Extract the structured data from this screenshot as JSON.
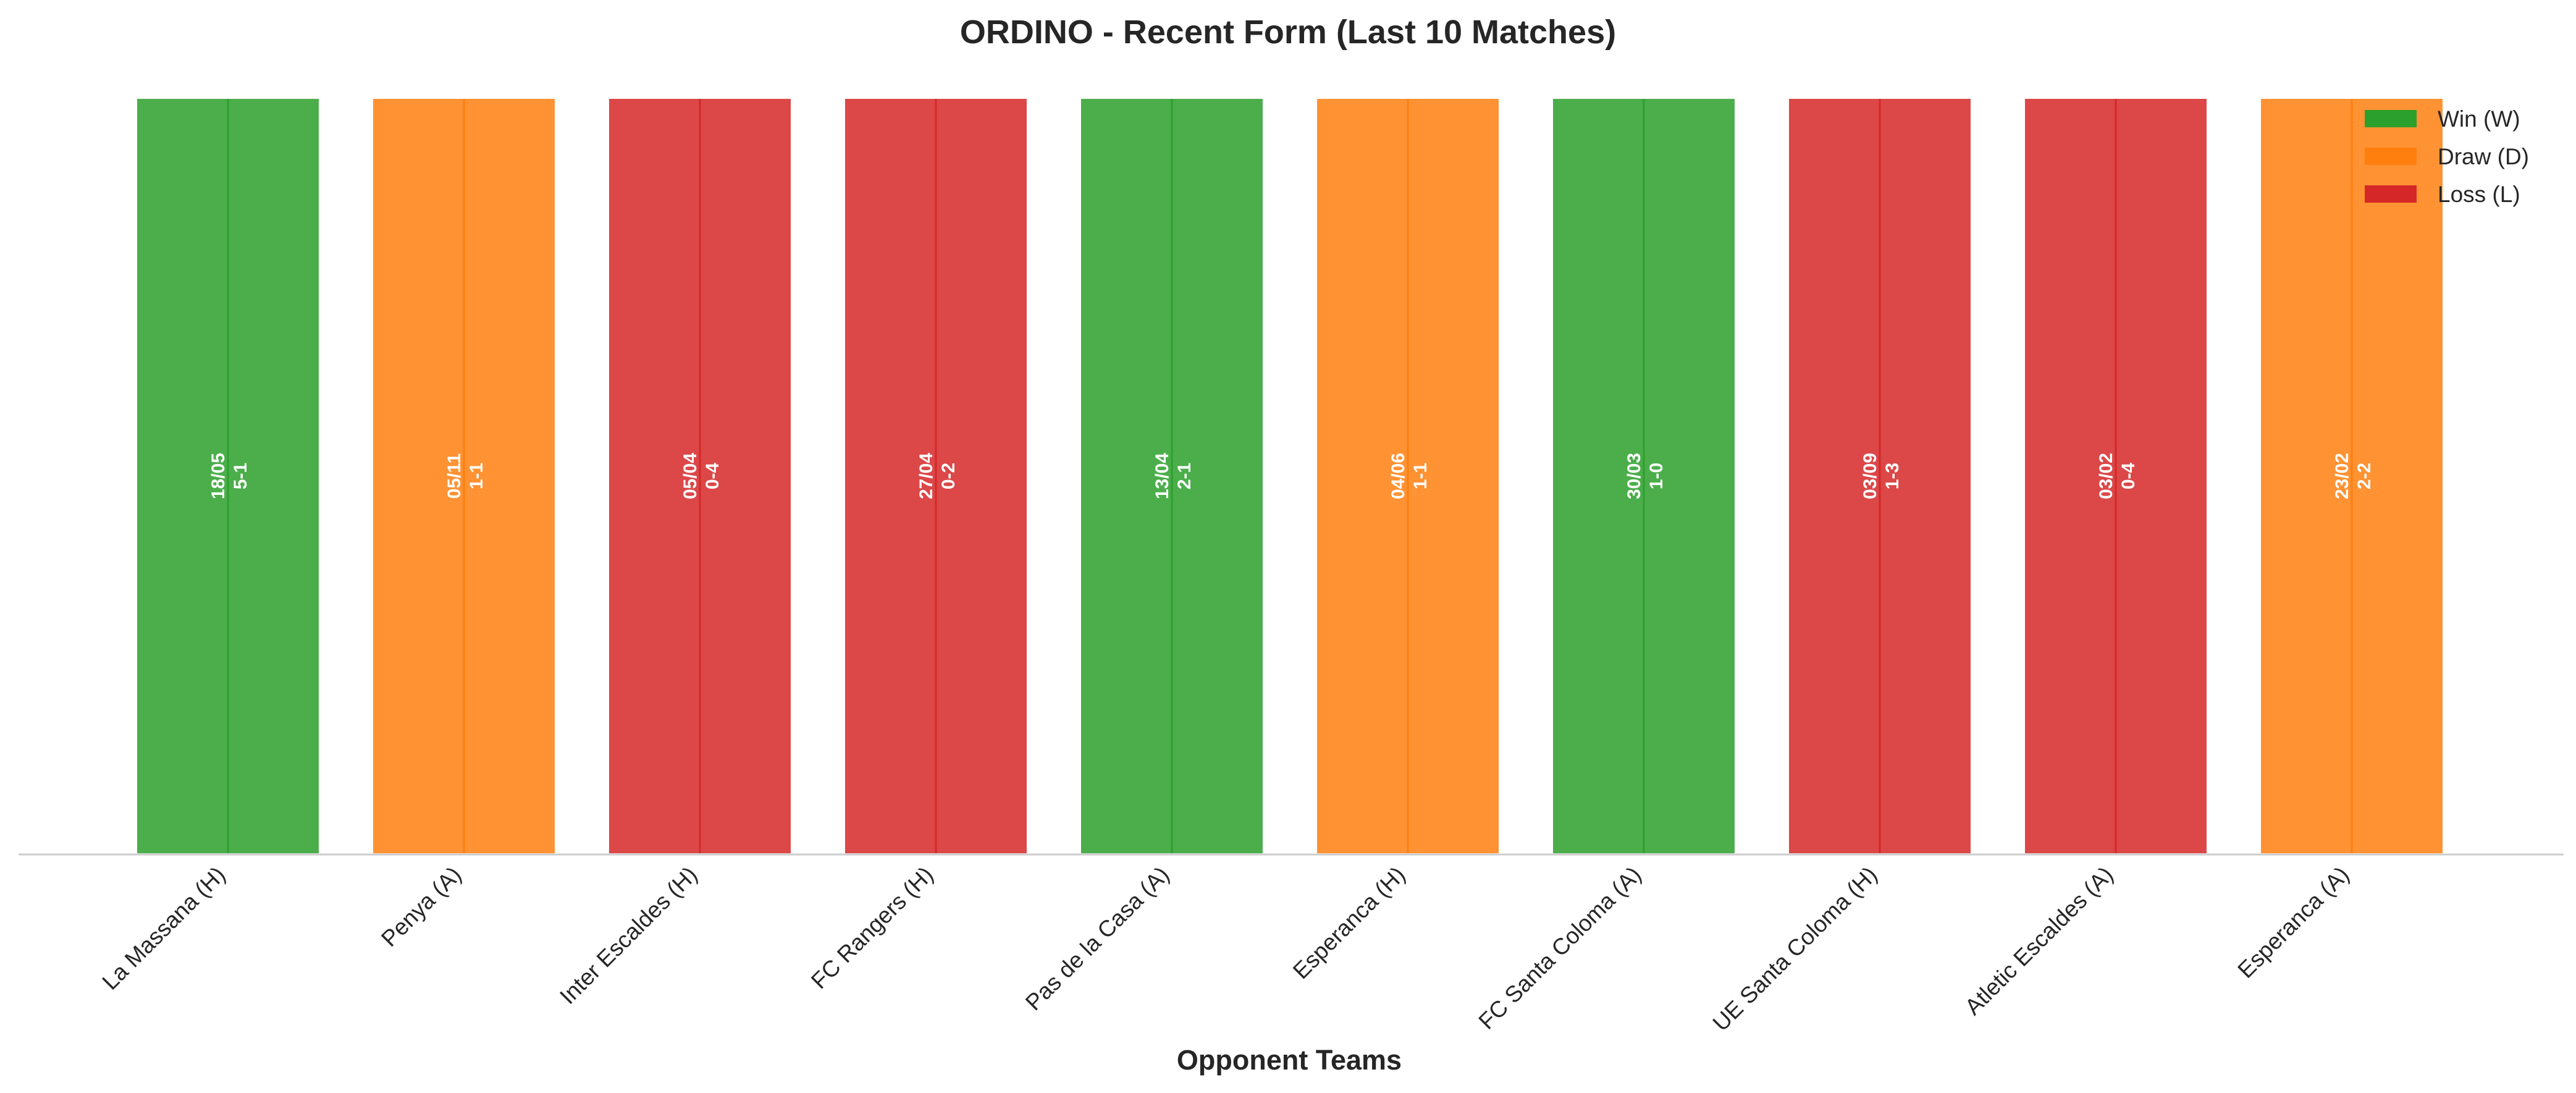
{
  "chart_data": {
    "type": "bar",
    "title": "ORDINO - Recent Form (Last 10 Matches)",
    "xlabel": "Opponent Teams",
    "ylabel": "",
    "ylim": [
      0,
      1
    ],
    "grid": false,
    "legend_position": "top-right",
    "categories": [
      "La Massana (H)",
      "Penya (A)",
      "Inter Escaldes (H)",
      "FC Rangers (H)",
      "Pas de la Casa (A)",
      "Esperanca (H)",
      "FC Santa Coloma (A)",
      "UE Santa Coloma (H)",
      "Atletic Escaldes (A)",
      "Esperanca (A)"
    ],
    "values": [
      1,
      1,
      1,
      1,
      1,
      1,
      1,
      1,
      1,
      1
    ],
    "results": [
      "W",
      "D",
      "L",
      "L",
      "W",
      "D",
      "W",
      "L",
      "L",
      "D"
    ],
    "dates": [
      "18/05",
      "05/11",
      "05/04",
      "27/04",
      "13/04",
      "04/06",
      "30/03",
      "03/09",
      "03/02",
      "23/02"
    ],
    "scores": [
      "5-1",
      "1-1",
      "0-4",
      "0-2",
      "2-1",
      "1-1",
      "1-0",
      "1-3",
      "0-4",
      "2-2"
    ],
    "legend": [
      {
        "key": "W",
        "label": "Win (W)",
        "color": "#2ca02c"
      },
      {
        "key": "D",
        "label": "Draw (D)",
        "color": "#ff7f0e"
      },
      {
        "key": "L",
        "label": "Loss (L)",
        "color": "#d62728"
      }
    ]
  }
}
